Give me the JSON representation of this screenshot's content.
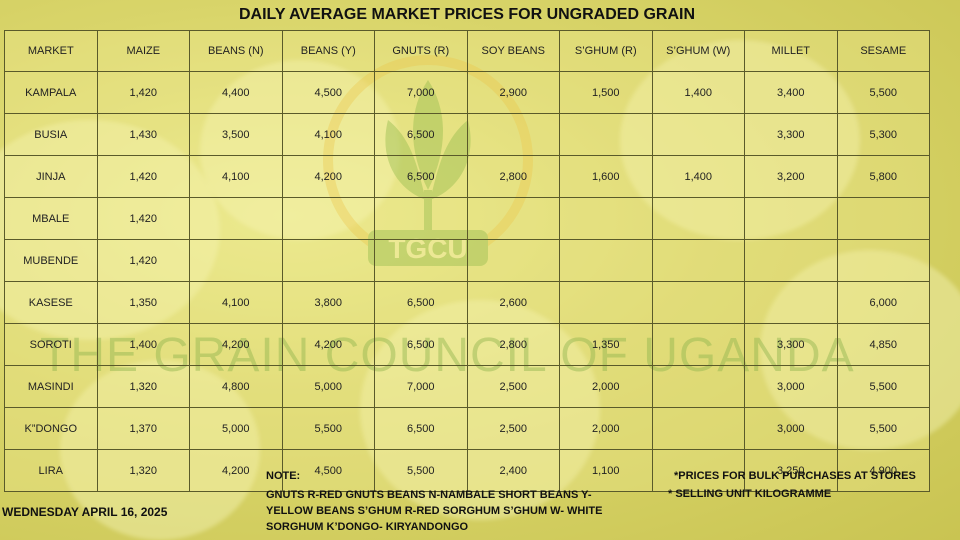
{
  "title": "DAILY AVERAGE MARKET PRICES FOR UNGRADED GRAIN",
  "watermark": {
    "logo_text": "TGCU",
    "org_text": "THE GRAIN COUNCIL OF UGANDA"
  },
  "table": {
    "headers": [
      "MARKET",
      "MAIZE",
      "BEANS (N)",
      "BEANS (Y)",
      "GNUTS (R)",
      "SOY BEANS",
      "S’GHUM (R)",
      "S’GHUM (W)",
      "MILLET",
      "SESAME"
    ],
    "rows": [
      [
        "KAMPALA",
        "1,420",
        "4,400",
        "4,500",
        "7,000",
        "2,900",
        "1,500",
        "1,400",
        "3,400",
        "5,500"
      ],
      [
        "BUSIA",
        "1,430",
        "3,500",
        "4,100",
        "6,500",
        "",
        "",
        "",
        "3,300",
        "5,300"
      ],
      [
        "JINJA",
        "1,420",
        "4,100",
        "4,200",
        "6,500",
        "2,800",
        "1,600",
        "1,400",
        "3,200",
        "5,800"
      ],
      [
        "MBALE",
        "1,420",
        "",
        "",
        "",
        "",
        "",
        "",
        "",
        ""
      ],
      [
        "MUBENDE",
        "1,420",
        "",
        "",
        "",
        "",
        "",
        "",
        "",
        ""
      ],
      [
        "KASESE",
        "1,350",
        "4,100",
        "3,800",
        "6,500",
        "2,600",
        "",
        "",
        "",
        "6,000"
      ],
      [
        "SOROTI",
        "1,400",
        "4,200",
        "4,200",
        "6,500",
        "2,800",
        "1,350",
        "",
        "3,300",
        "4,850"
      ],
      [
        "MASINDI",
        "1,320",
        "4,800",
        "5,000",
        "7,000",
        "2,500",
        "2,000",
        "",
        "3,000",
        "5,500"
      ],
      [
        "K”DONGO",
        "1,370",
        "5,000",
        "5,500",
        "6,500",
        "2,500",
        "2,000",
        "",
        "3,000",
        "5,500"
      ],
      [
        "LIRA",
        "1,320",
        "4,200",
        "4,500",
        "5,500",
        "2,400",
        "1,100",
        "",
        "3,250",
        "4,900"
      ]
    ]
  },
  "notes": {
    "heading": "NOTE:",
    "body": "GNUTS R-RED GNUTS   BEANS N-NAMBALE SHORT BEANS Y-YELLOW BEANS  S’GHUM R-RED SORGHUM  S’GHUM W- WHITE SORGHUM K’DONGO- KIRYANDONGO",
    "bulk": "*PRICES FOR BULK PURCHASES AT STORES",
    "unit": "* SELLING UNIT KILOGRAMME"
  },
  "date": "WEDNESDAY APRIL 16, 2025"
}
